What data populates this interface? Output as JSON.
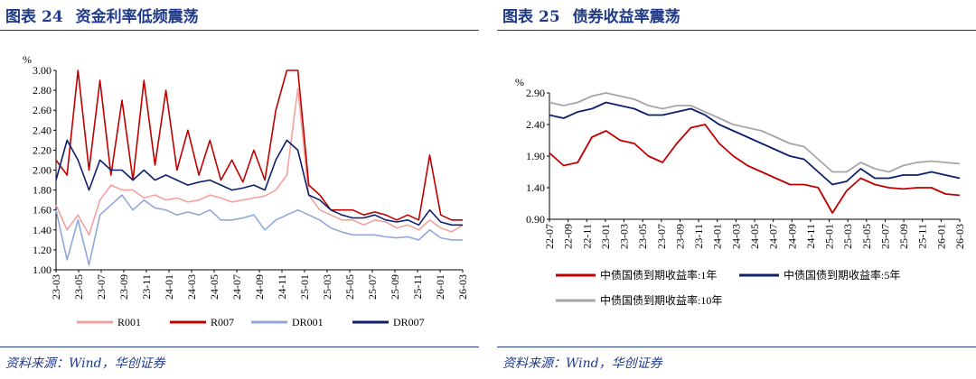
{
  "colors": {
    "title": "#1f3a8a",
    "R001": "#f4a0a0",
    "R007": "#c00000",
    "DR001": "#8fa8dc",
    "DR007": "#0d1f6e",
    "y1": "#c00000",
    "y5": "#0d1f6e",
    "y10": "#a6a6a6"
  },
  "left": {
    "fig_label": "图表",
    "fig_num": "24",
    "title": "资金利率低频震荡",
    "source": "资料来源：Wind，华创证券",
    "chart_data": {
      "type": "line",
      "ylabel": "%",
      "ylim": [
        1.0,
        3.0
      ],
      "yticks": [
        "3.00",
        "2.80",
        "2.60",
        "2.40",
        "2.20",
        "2.00",
        "1.80",
        "1.60",
        "1.40",
        "1.20",
        "1.00"
      ],
      "xticks": [
        "23-03",
        "23-05",
        "23-07",
        "23-09",
        "23-11",
        "24-01",
        "24-03",
        "24-05",
        "24-07",
        "24-09",
        "24-11",
        "25-01",
        "25-03",
        "25-05",
        "25-07",
        "25-09",
        "25-11",
        "26-01",
        "26-03"
      ],
      "series": [
        {
          "name": "R001",
          "color_key": "R001",
          "values": [
            1.65,
            1.4,
            1.55,
            1.35,
            1.7,
            1.85,
            1.8,
            1.8,
            1.72,
            1.75,
            1.7,
            1.72,
            1.68,
            1.7,
            1.75,
            1.72,
            1.68,
            1.7,
            1.72,
            1.74,
            1.8,
            1.95,
            2.82,
            1.75,
            1.6,
            1.55,
            1.5,
            1.5,
            1.45,
            1.5,
            1.48,
            1.42,
            1.45,
            1.4,
            1.5,
            1.42,
            1.38,
            1.45
          ]
        },
        {
          "name": "R007",
          "color_key": "R007",
          "values": [
            2.1,
            1.95,
            3.0,
            2.0,
            2.9,
            1.95,
            2.7,
            1.9,
            2.9,
            2.05,
            2.8,
            2.0,
            2.4,
            1.95,
            2.3,
            1.9,
            2.1,
            1.88,
            2.2,
            1.9,
            2.6,
            3.0,
            3.0,
            1.85,
            1.75,
            1.6,
            1.6,
            1.6,
            1.55,
            1.58,
            1.55,
            1.5,
            1.55,
            1.5,
            2.15,
            1.55,
            1.5,
            1.5
          ]
        },
        {
          "name": "DR001",
          "color_key": "DR001",
          "values": [
            1.6,
            1.1,
            1.5,
            1.05,
            1.55,
            1.65,
            1.75,
            1.6,
            1.7,
            1.62,
            1.6,
            1.55,
            1.58,
            1.55,
            1.6,
            1.5,
            1.5,
            1.52,
            1.55,
            1.4,
            1.5,
            1.55,
            1.6,
            1.55,
            1.5,
            1.42,
            1.38,
            1.35,
            1.35,
            1.35,
            1.33,
            1.32,
            1.33,
            1.3,
            1.4,
            1.32,
            1.3,
            1.3
          ]
        },
        {
          "name": "DR007",
          "color_key": "DR007",
          "values": [
            1.9,
            2.3,
            2.1,
            1.8,
            2.1,
            2.0,
            2.0,
            1.9,
            2.0,
            1.9,
            1.95,
            1.9,
            1.85,
            1.88,
            1.9,
            1.85,
            1.8,
            1.82,
            1.85,
            1.8,
            2.1,
            2.3,
            2.2,
            1.75,
            1.7,
            1.6,
            1.55,
            1.52,
            1.52,
            1.55,
            1.5,
            1.48,
            1.5,
            1.45,
            1.6,
            1.48,
            1.45,
            1.45
          ]
        }
      ],
      "legend": [
        "R001",
        "R007",
        "DR001",
        "DR007"
      ]
    }
  },
  "right": {
    "fig_label": "图表",
    "fig_num": "25",
    "title": "债券收益率震荡",
    "source": "资料来源：Wind，华创证券",
    "chart_data": {
      "type": "line",
      "ylabel": "%",
      "ylim": [
        0.9,
        2.9
      ],
      "yticks": [
        "2.90",
        "2.40",
        "1.90",
        "1.40",
        "0.90"
      ],
      "xticks": [
        "22-07",
        "22-09",
        "22-11",
        "23-01",
        "23-03",
        "23-05",
        "23-07",
        "23-09",
        "23-11",
        "24-01",
        "24-03",
        "24-05",
        "24-07",
        "24-09",
        "24-11",
        "25-01",
        "25-03",
        "25-05",
        "25-07",
        "25-09",
        "25-11",
        "26-01",
        "26-03"
      ],
      "series": [
        {
          "name": "中债国债到期收益率:1年",
          "color_key": "y1",
          "values": [
            1.95,
            1.75,
            1.8,
            2.2,
            2.3,
            2.15,
            2.1,
            1.9,
            1.8,
            2.1,
            2.35,
            2.4,
            2.1,
            1.9,
            1.75,
            1.65,
            1.55,
            1.45,
            1.45,
            1.4,
            1.0,
            1.35,
            1.55,
            1.45,
            1.4,
            1.38,
            1.4,
            1.4,
            1.3,
            1.28
          ]
        },
        {
          "name": "中债国债到期收益率:5年",
          "color_key": "y5",
          "values": [
            2.55,
            2.5,
            2.6,
            2.65,
            2.75,
            2.7,
            2.65,
            2.55,
            2.55,
            2.6,
            2.65,
            2.55,
            2.4,
            2.3,
            2.2,
            2.1,
            2.0,
            1.9,
            1.85,
            1.65,
            1.45,
            1.5,
            1.7,
            1.55,
            1.55,
            1.6,
            1.6,
            1.65,
            1.6,
            1.55
          ]
        },
        {
          "name": "中债国债到期收益率:10年",
          "color_key": "y10",
          "values": [
            2.75,
            2.7,
            2.75,
            2.85,
            2.9,
            2.85,
            2.8,
            2.7,
            2.65,
            2.7,
            2.7,
            2.6,
            2.5,
            2.4,
            2.35,
            2.3,
            2.2,
            2.1,
            2.05,
            1.85,
            1.65,
            1.65,
            1.8,
            1.7,
            1.65,
            1.75,
            1.8,
            1.82,
            1.8,
            1.78
          ]
        }
      ],
      "legend": [
        "中债国债到期收益率:1年",
        "中债国债到期收益率:5年",
        "中债国债到期收益率:10年"
      ]
    }
  }
}
